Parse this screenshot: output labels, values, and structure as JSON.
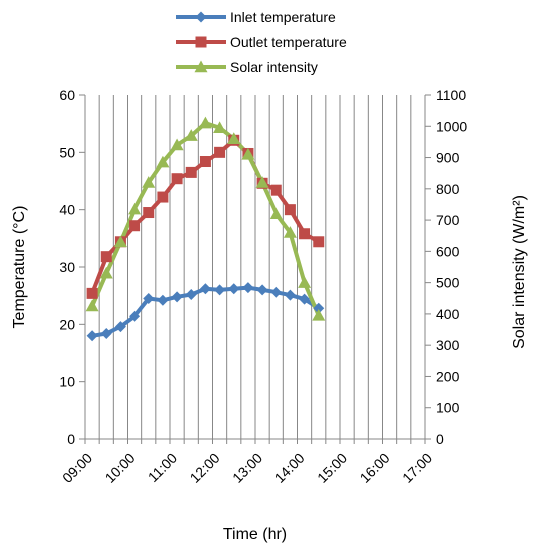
{
  "chart_data": {
    "type": "line",
    "x": [
      "09:00",
      "09:20",
      "09:40",
      "10:00",
      "10:20",
      "10:40",
      "11:00",
      "11:20",
      "11:40",
      "12:00",
      "12:20",
      "12:40",
      "13:00",
      "13:20",
      "13:40",
      "14:00",
      "14:20",
      "14:40",
      "15:00",
      "15:20",
      "15:40",
      "16:00",
      "16:20",
      "16:40",
      "17:00"
    ],
    "x_tick_labels": [
      "09:00",
      "10:00",
      "11:00",
      "12:00",
      "13:00",
      "14:00",
      "15:00",
      "16:00",
      "17:00"
    ],
    "xlabel": "Time (hr)",
    "ylabel_left": "Temperature (°C)",
    "ylabel_right": "Solar intensity (W/m²)",
    "ylim_left": [
      0,
      60
    ],
    "ylim_right": [
      0,
      1100
    ],
    "yticks_left": [
      0,
      10,
      20,
      30,
      40,
      50,
      60
    ],
    "yticks_right": [
      0,
      100,
      200,
      300,
      400,
      500,
      600,
      700,
      800,
      900,
      1000,
      1100
    ],
    "grid": "vertical-lines",
    "legend_position": "top",
    "series": [
      {
        "name": "Inlet temperature",
        "axis": "left",
        "color": "#4a7ebb",
        "marker": "diamond",
        "points": [
          [
            "09:10",
            18.0
          ],
          [
            "09:30",
            18.4
          ],
          [
            "09:50",
            19.6
          ],
          [
            "10:10",
            21.4
          ],
          [
            "10:30",
            24.5
          ],
          [
            "10:50",
            24.2
          ],
          [
            "11:10",
            24.8
          ],
          [
            "11:30",
            25.2
          ],
          [
            "11:50",
            26.2
          ],
          [
            "12:10",
            26.0
          ],
          [
            "12:30",
            26.2
          ],
          [
            "12:50",
            26.4
          ],
          [
            "13:10",
            26.0
          ],
          [
            "13:30",
            25.6
          ],
          [
            "13:50",
            25.1
          ],
          [
            "14:10",
            24.4
          ],
          [
            "14:30",
            22.8
          ]
        ]
      },
      {
        "name": "Outlet temperature",
        "axis": "left",
        "color": "#be4b48",
        "marker": "square",
        "points": [
          [
            "09:10",
            25.4
          ],
          [
            "09:30",
            31.8
          ],
          [
            "09:50",
            34.4
          ],
          [
            "10:10",
            37.2
          ],
          [
            "10:30",
            39.5
          ],
          [
            "10:50",
            42.2
          ],
          [
            "11:10",
            45.4
          ],
          [
            "11:30",
            46.5
          ],
          [
            "11:50",
            48.4
          ],
          [
            "12:10",
            50.0
          ],
          [
            "12:30",
            52.1
          ],
          [
            "12:50",
            49.8
          ],
          [
            "13:10",
            44.6
          ],
          [
            "13:30",
            43.4
          ],
          [
            "13:50",
            40.0
          ],
          [
            "14:10",
            35.8
          ],
          [
            "14:30",
            34.4
          ]
        ]
      },
      {
        "name": "Solar intensity",
        "axis": "right",
        "color": "#98b954",
        "marker": "triangle",
        "points": [
          [
            "09:10",
            425
          ],
          [
            "09:30",
            530
          ],
          [
            "09:50",
            630
          ],
          [
            "10:10",
            735
          ],
          [
            "10:30",
            820
          ],
          [
            "10:50",
            885
          ],
          [
            "11:10",
            940
          ],
          [
            "11:30",
            970
          ],
          [
            "11:50",
            1010
          ],
          [
            "12:10",
            995
          ],
          [
            "12:30",
            960
          ],
          [
            "12:50",
            910
          ],
          [
            "13:10",
            820
          ],
          [
            "13:30",
            720
          ],
          [
            "13:50",
            660
          ],
          [
            "14:10",
            500
          ],
          [
            "14:30",
            395
          ]
        ]
      }
    ]
  }
}
